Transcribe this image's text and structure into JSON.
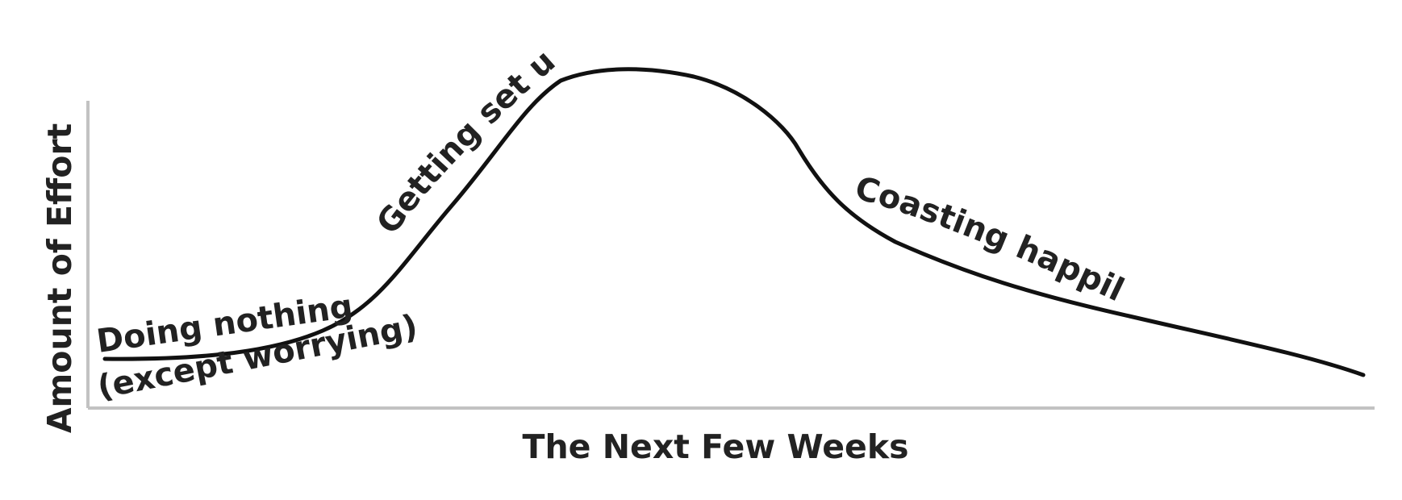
{
  "diagram": {
    "axes": {
      "x_label": "The Next Few Weeks",
      "y_label": "Amount of Effort"
    },
    "curve": {
      "description": "effort over time: low flat start, steep rise, peak, decline, long tail",
      "color": "#111111"
    },
    "stage_labels": {
      "doing_nothing": "Doing nothing",
      "except_worrying": "(except worrying)",
      "getting_set_up": "Getting set up",
      "coasting_happily": "Coasting happily"
    },
    "colors": {
      "axis": "#c2c2c2",
      "text": "#222222",
      "background": "#ffffff"
    }
  }
}
